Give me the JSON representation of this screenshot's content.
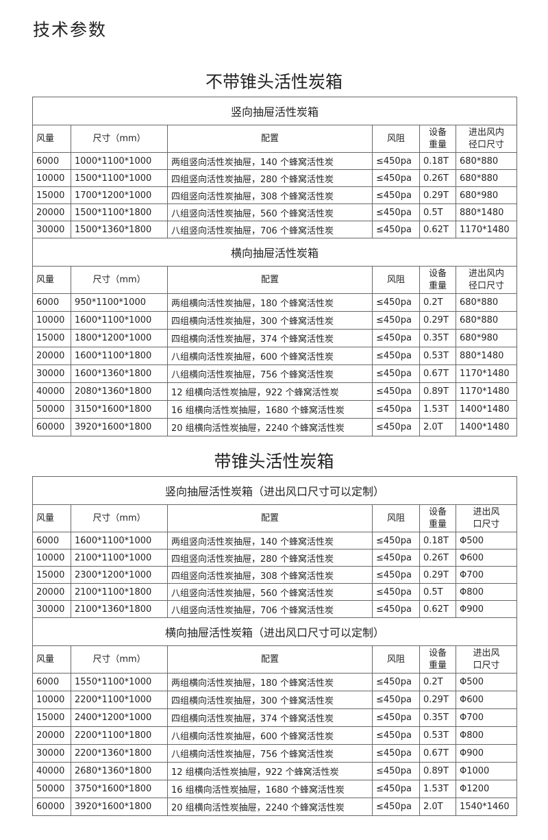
{
  "page_title": "技术参数",
  "sections": [
    {
      "title": "不带锥头活性炭箱",
      "tables": [
        {
          "subtitle": "竖向抽屉活性炭箱",
          "headers": [
            "风量",
            "尺寸（mm）",
            "配置",
            "风阻",
            "设备\n重量",
            "进出风内\n径口尺寸"
          ],
          "rows": [
            [
              "6000",
              "1000*1100*1000",
              "两组竖向活性炭抽屉，140 个蜂窝活性炭",
              "≤450pa",
              "0.18T",
              "680*880"
            ],
            [
              "10000",
              "1500*1100*1000",
              "四组竖向活性炭抽屉，280 个蜂窝活性炭",
              "≤450pa",
              "0.26T",
              "680*880"
            ],
            [
              "15000",
              "1700*1200*1000",
              "四组竖向活性炭抽屉，308 个蜂窝活性炭",
              "≤450pa",
              "0.29T",
              "680*980"
            ],
            [
              "20000",
              "1500*1100*1800",
              "八组竖向活性炭抽屉，560 个蜂窝活性炭",
              "≤450pa",
              "0.5T",
              "880*1480"
            ],
            [
              "30000",
              "1500*1360*1800",
              "八组竖向活性炭抽屉，706 个蜂窝活性炭",
              "≤450pa",
              "0.62T",
              "1170*1480"
            ]
          ]
        },
        {
          "subtitle": "横向抽屉活性炭箱",
          "headers": [
            "风量",
            "尺寸（mm）",
            "配置",
            "风阻",
            "设备\n重量",
            "进出风内\n径口尺寸"
          ],
          "rows": [
            [
              "6000",
              "950*1100*1000",
              "两组横向活性炭抽屉，180 个蜂窝活性炭",
              "≤450pa",
              "0.2T",
              "680*880"
            ],
            [
              "10000",
              "1600*1100*1000",
              "四组横向活性炭抽屉，300 个蜂窝活性炭",
              "≤450pa",
              "0.29T",
              "680*880"
            ],
            [
              "15000",
              "1800*1200*1000",
              "四组横向活性炭抽屉，374 个蜂窝活性炭",
              "≤450pa",
              "0.35T",
              "680*980"
            ],
            [
              "20000",
              "1600*1100*1800",
              "八组横向活性炭抽屉，600 个蜂窝活性炭",
              "≤450pa",
              "0.53T",
              "880*1480"
            ],
            [
              "30000",
              "1600*1360*1800",
              "八组横向活性炭抽屉，756 个蜂窝活性炭",
              "≤450pa",
              "0.67T",
              "1170*1480"
            ],
            [
              "40000",
              "2080*1360*1800",
              "12 组横向活性炭抽屉，922 个蜂窝活性炭",
              "≤450pa",
              "0.89T",
              "1170*1480"
            ],
            [
              "50000",
              "3150*1600*1800",
              "16 组横向活性炭抽屉，1680 个蜂窝活性炭",
              "≤450pa",
              "1.53T",
              "1400*1480"
            ],
            [
              "60000",
              "3920*1600*1800",
              "20 组横向活性炭抽屉，2240 个蜂窝活性炭",
              "≤450pa",
              "2.0T",
              "1400*1480"
            ]
          ]
        }
      ]
    },
    {
      "title": "带锥头活性炭箱",
      "tables": [
        {
          "subtitle": "竖向抽屉活性炭箱（进出风口尺寸可以定制）",
          "headers": [
            "风量",
            "尺寸（mm）",
            "配置",
            "风阻",
            "设备\n重量",
            "进出风\n口尺寸"
          ],
          "rows": [
            [
              "6000",
              "1600*1100*1000",
              "两组竖向活性炭抽屉，140 个蜂窝活性炭",
              "≤450pa",
              "0.18T",
              "Φ500"
            ],
            [
              "10000",
              "2100*1100*1000",
              "四组竖向活性炭抽屉，280 个蜂窝活性炭",
              "≤450pa",
              "0.26T",
              "Φ600"
            ],
            [
              "15000",
              "2300*1200*1000",
              "四组竖向活性炭抽屉，308 个蜂窝活性炭",
              "≤450pa",
              "0.29T",
              "Φ700"
            ],
            [
              "20000",
              "2100*1100*1800",
              "八组竖向活性炭抽屉，560 个蜂窝活性炭",
              "≤450pa",
              "0.5T",
              "Φ800"
            ],
            [
              "30000",
              "2100*1360*1800",
              "八组竖向活性炭抽屉，706 个蜂窝活性炭",
              "≤450pa",
              "0.62T",
              "Φ900"
            ]
          ]
        },
        {
          "subtitle": "横向抽屉活性炭箱（进出风口尺寸可以定制）",
          "headers": [
            "风量",
            "尺寸（mm）",
            "配置",
            "风阻",
            "设备\n重量",
            "进出风\n口尺寸"
          ],
          "rows": [
            [
              "6000",
              "1550*1100*1000",
              "两组横向活性炭抽屉，180 个蜂窝活性炭",
              "≤450pa",
              "0.2T",
              "Φ500"
            ],
            [
              "10000",
              "2200*1100*1000",
              "四组横向活性炭抽屉，300 个蜂窝活性炭",
              "≤450pa",
              "0.29T",
              "Φ600"
            ],
            [
              "15000",
              "2400*1200*1000",
              "四组横向活性炭抽屉，374 个蜂窝活性炭",
              "≤450pa",
              "0.35T",
              "Φ700"
            ],
            [
              "20000",
              "2200*1100*1800",
              "八组横向活性炭抽屉，600 个蜂窝活性炭",
              "≤450pa",
              "0.53T",
              "Φ800"
            ],
            [
              "30000",
              "2200*1360*1800",
              "八组横向活性炭抽屉，756 个蜂窝活性炭",
              "≤450pa",
              "0.67T",
              "Φ900"
            ],
            [
              "40000",
              "2680*1360*1800",
              "12 组横向活性炭抽屉，922 个蜂窝活性炭",
              "≤450pa",
              "0.89T",
              "Φ1000"
            ],
            [
              "50000",
              "3750*1600*1800",
              "16 组横向活性炭抽屉，1680 个蜂窝活性炭",
              "≤450pa",
              "1.53T",
              "Φ1200"
            ],
            [
              "60000",
              "3920*1600*1800",
              "20 组横向活性炭抽屉，2240 个蜂窝活性炭",
              "≤450pa",
              "2.0T",
              "1540*1460"
            ]
          ]
        }
      ]
    }
  ]
}
